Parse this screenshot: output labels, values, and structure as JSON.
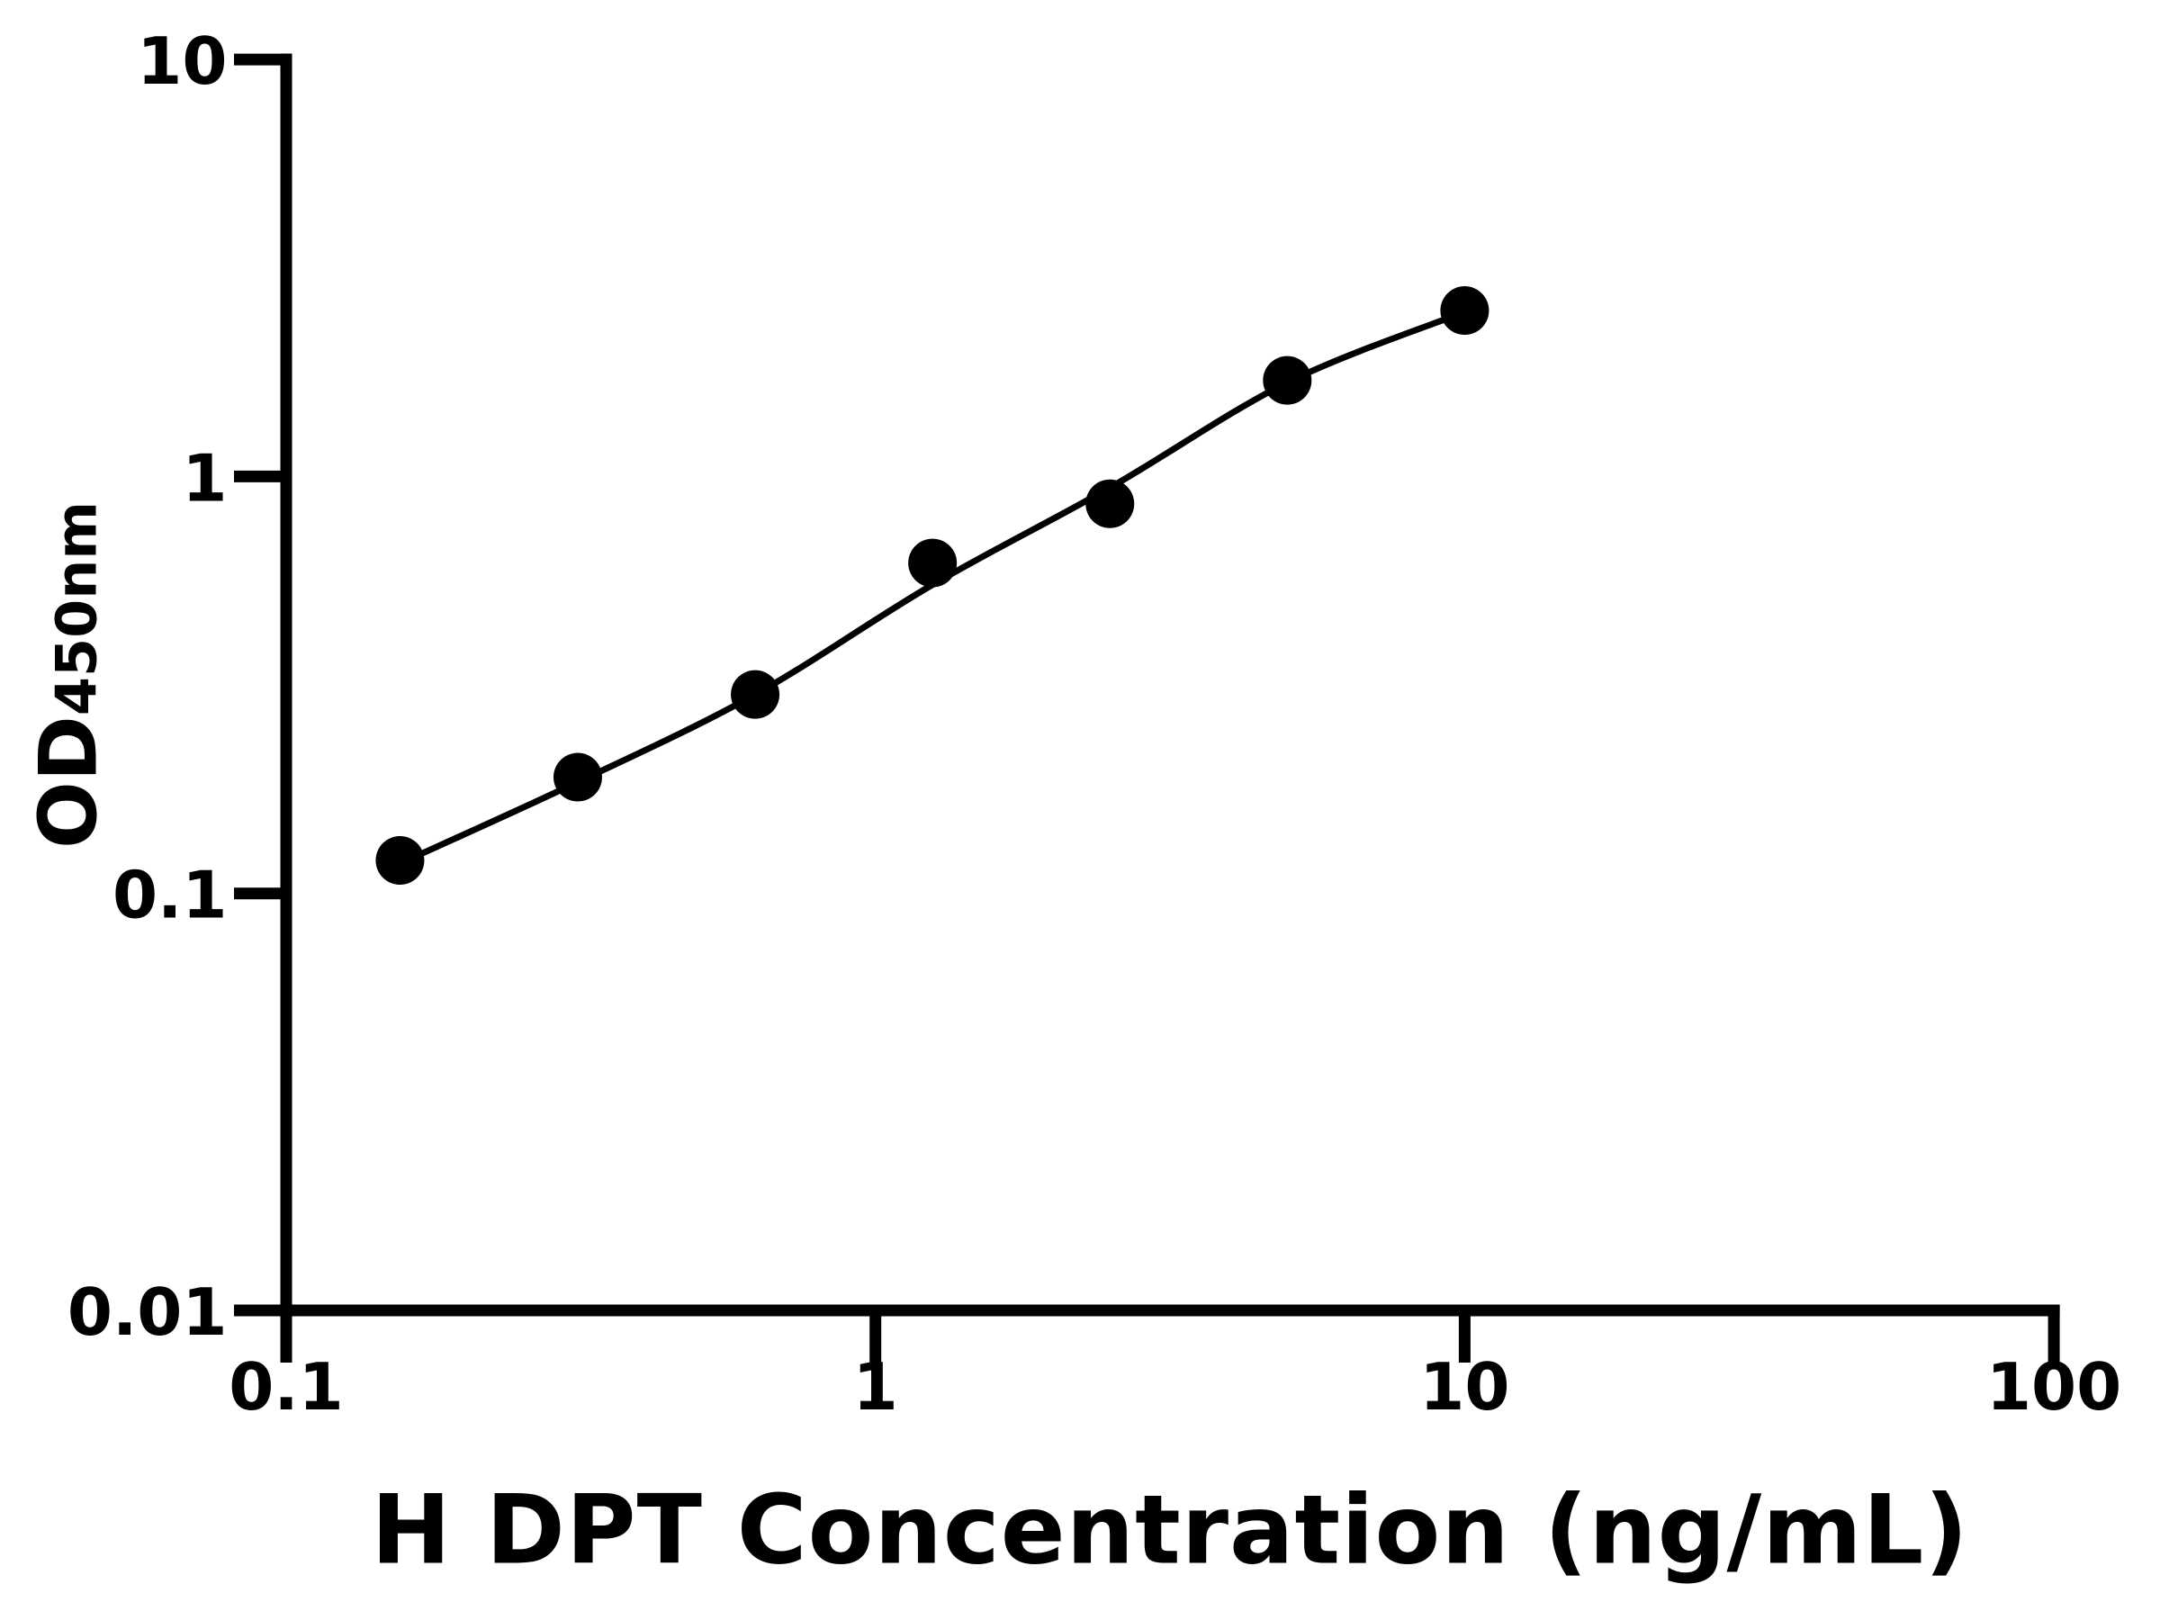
{
  "chart_data": {
    "type": "scatter",
    "title": "",
    "xlabel": "H DPT Concentration (ng/mL)",
    "ylabel_main": "OD",
    "ylabel_sub": "450nm",
    "x_scale": "log",
    "y_scale": "log",
    "xlim": [
      0.1,
      100
    ],
    "ylim": [
      0.01,
      10
    ],
    "x": [
      0.156,
      0.3125,
      0.625,
      1.25,
      2.5,
      5,
      10
    ],
    "y": [
      0.12,
      0.19,
      0.3,
      0.62,
      0.86,
      1.7,
      2.5
    ],
    "fit_line_y": [
      0.118,
      0.185,
      0.3,
      0.55,
      0.94,
      1.68,
      2.48
    ],
    "x_ticks": [
      {
        "value": 0.1,
        "label": "0.1"
      },
      {
        "value": 1,
        "label": "1"
      },
      {
        "value": 10,
        "label": "10"
      },
      {
        "value": 100,
        "label": "100"
      }
    ],
    "y_ticks": [
      {
        "value": 0.01,
        "label": "0.01"
      },
      {
        "value": 0.1,
        "label": "0.1"
      },
      {
        "value": 1,
        "label": "1"
      },
      {
        "value": 10,
        "label": "10"
      }
    ],
    "grid": false,
    "legend": "none",
    "marker_color": "#000000",
    "line_color": "#000000",
    "axis_color": "#000000",
    "background": "#ffffff"
  }
}
